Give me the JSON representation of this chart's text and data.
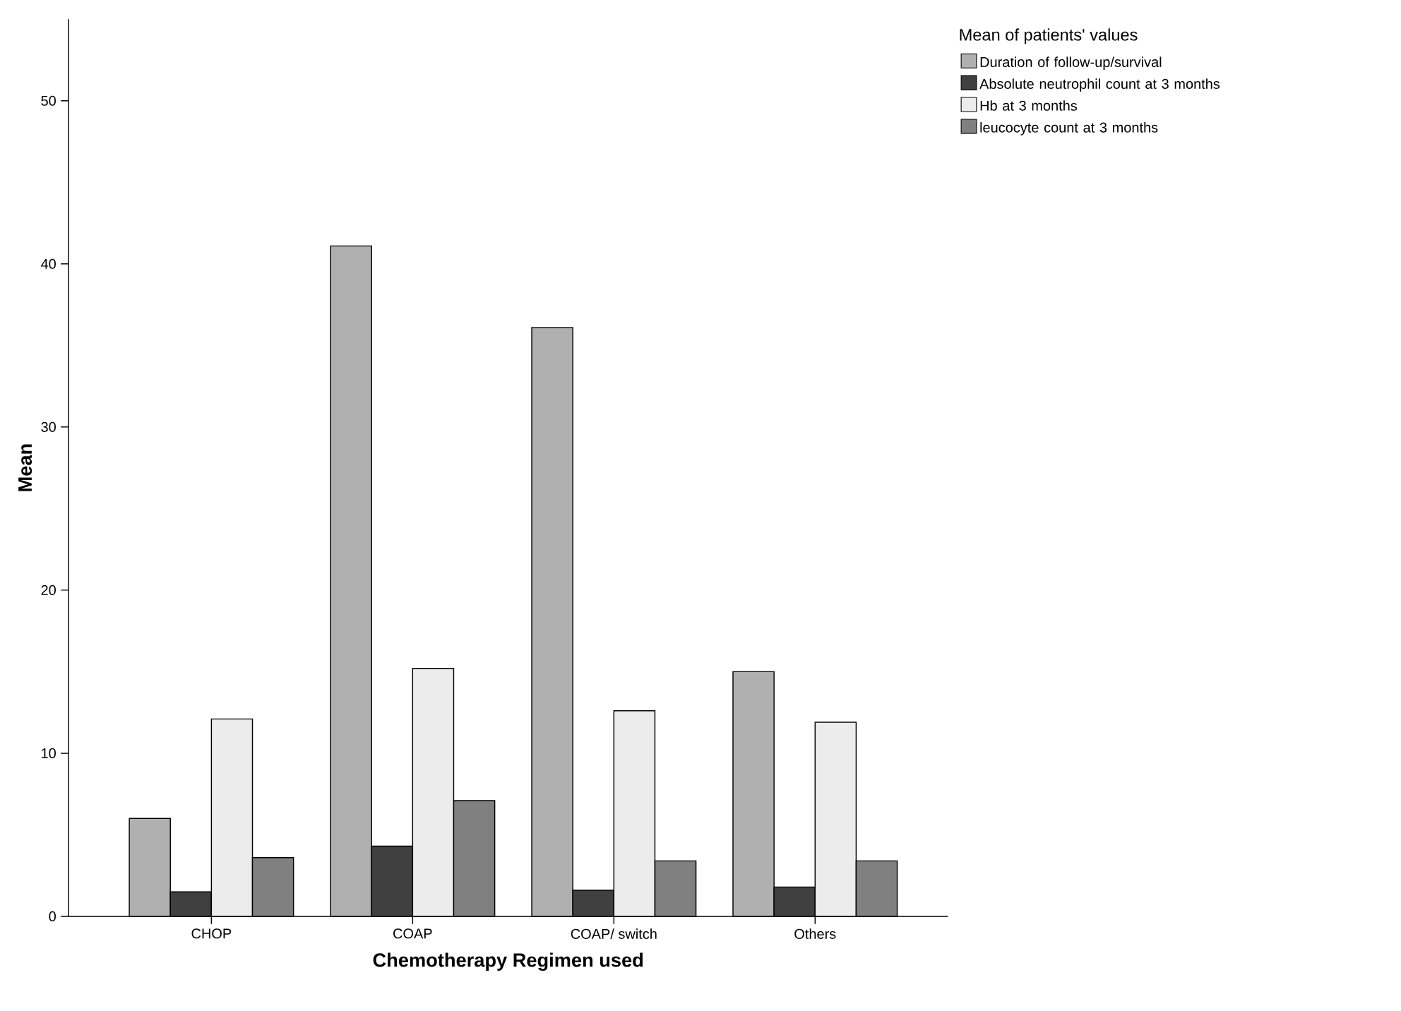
{
  "chart_data": {
    "type": "bar",
    "xlabel": "Chemotherapy Regimen used",
    "ylabel": "Mean",
    "legend_title": "Mean of patients' values",
    "categories": [
      "CHOP",
      "COAP",
      "COAP/ switch",
      "Others"
    ],
    "series": [
      {
        "name": "Duration of follow-up/survival",
        "color": "#b0b0b0",
        "values": [
          6.0,
          41.1,
          36.1,
          15.0
        ]
      },
      {
        "name": "Absolute neutrophil count at 3 months",
        "color": "#404040",
        "values": [
          1.5,
          4.3,
          1.6,
          1.8
        ]
      },
      {
        "name": "Hb at 3 months",
        "color": "#ececec",
        "values": [
          12.1,
          15.2,
          12.6,
          11.9
        ]
      },
      {
        "name": "leucocyte count at 3 months",
        "color": "#808080",
        "values": [
          3.6,
          7.1,
          3.4,
          3.4
        ]
      }
    ],
    "ylim": [
      0,
      55
    ],
    "yticks": [
      0,
      10,
      20,
      30,
      40,
      50
    ],
    "grid": false,
    "legend": "top right"
  }
}
